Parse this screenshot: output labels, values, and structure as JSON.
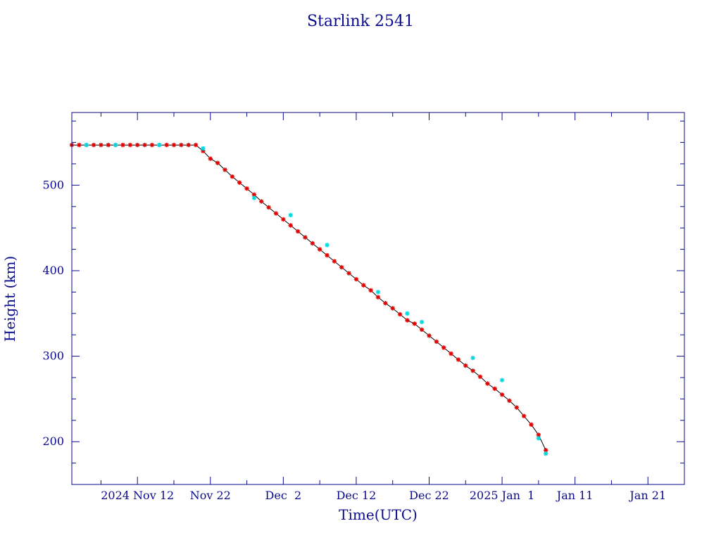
{
  "chart_data": {
    "type": "scatter",
    "title": "Starlink 2541",
    "xlabel": "Time(UTC)",
    "ylabel": "Height (km)",
    "x_unit": "date",
    "xlim": [
      "2024-11-03",
      "2025-01-26"
    ],
    "ylim": [
      150,
      585
    ],
    "yticks": [
      200,
      300,
      400,
      500
    ],
    "xticks": [
      {
        "date": "2024-11-12",
        "label": "2024 Nov 12"
      },
      {
        "date": "2024-11-22",
        "label": "Nov 22"
      },
      {
        "date": "2024-12-02",
        "label": "Dec  2"
      },
      {
        "date": "2024-12-12",
        "label": "Dec 12"
      },
      {
        "date": "2024-12-22",
        "label": "Dec 22"
      },
      {
        "date": "2025-01-01",
        "label": "2025 Jan  1"
      },
      {
        "date": "2025-01-11",
        "label": "Jan 11"
      },
      {
        "date": "2025-01-21",
        "label": "Jan 21"
      }
    ],
    "grid": false,
    "colors": {
      "axes": "#0a0a8c",
      "line": "#000000",
      "primary_marker": "#e00000",
      "secondary_marker": "#00d8e0"
    },
    "series": [
      {
        "marker": "asterisk",
        "color": "#e00000",
        "x": [
          "2024-11-03",
          "2024-11-04",
          "2024-11-05",
          "2024-11-06",
          "2024-11-07",
          "2024-11-08",
          "2024-11-09",
          "2024-11-10",
          "2024-11-11",
          "2024-11-12",
          "2024-11-13",
          "2024-11-14",
          "2024-11-15",
          "2024-11-16",
          "2024-11-17",
          "2024-11-18",
          "2024-11-19",
          "2024-11-20",
          "2024-11-21",
          "2024-11-22",
          "2024-11-23",
          "2024-11-24",
          "2024-11-25",
          "2024-11-26",
          "2024-11-27",
          "2024-11-28",
          "2024-11-29",
          "2024-11-30",
          "2024-12-01",
          "2024-12-02",
          "2024-12-03",
          "2024-12-04",
          "2024-12-05",
          "2024-12-06",
          "2024-12-07",
          "2024-12-08",
          "2024-12-09",
          "2024-12-10",
          "2024-12-11",
          "2024-12-12",
          "2024-12-13",
          "2024-12-14",
          "2024-12-15",
          "2024-12-16",
          "2024-12-17",
          "2024-12-18",
          "2024-12-19",
          "2024-12-20",
          "2024-12-21",
          "2024-12-22",
          "2024-12-23",
          "2024-12-24",
          "2024-12-25",
          "2024-12-26",
          "2024-12-27",
          "2024-12-28",
          "2024-12-29",
          "2024-12-30",
          "2024-12-31",
          "2025-01-01",
          "2025-01-02",
          "2025-01-03",
          "2025-01-04",
          "2025-01-05",
          "2025-01-06",
          "2025-01-07"
        ],
        "y": [
          547,
          547,
          547,
          547,
          547,
          547,
          547,
          547,
          547,
          547,
          547,
          547,
          547,
          547,
          547,
          547,
          547,
          547,
          540,
          531,
          526,
          518,
          510,
          503,
          496,
          489,
          481,
          474,
          467,
          460,
          453,
          446,
          439,
          432,
          425,
          418,
          411,
          404,
          397,
          390,
          383,
          377,
          369,
          362,
          356,
          349,
          342,
          338,
          331,
          324,
          317,
          310,
          303,
          296,
          289,
          283,
          276,
          268,
          262,
          255,
          248,
          240,
          230,
          220,
          208,
          190
        ]
      },
      {
        "marker": "asterisk",
        "color": "#00d8e0",
        "x": [
          "2024-11-05",
          "2024-11-09",
          "2024-11-15",
          "2024-11-21",
          "2024-11-28",
          "2024-12-03",
          "2024-12-08",
          "2024-12-15",
          "2024-12-19",
          "2024-12-21",
          "2024-12-28",
          "2025-01-01",
          "2025-01-06",
          "2025-01-07"
        ],
        "y": [
          547,
          547,
          547,
          543,
          485,
          465,
          430,
          375,
          350,
          340,
          298,
          272,
          204,
          186
        ]
      }
    ]
  }
}
